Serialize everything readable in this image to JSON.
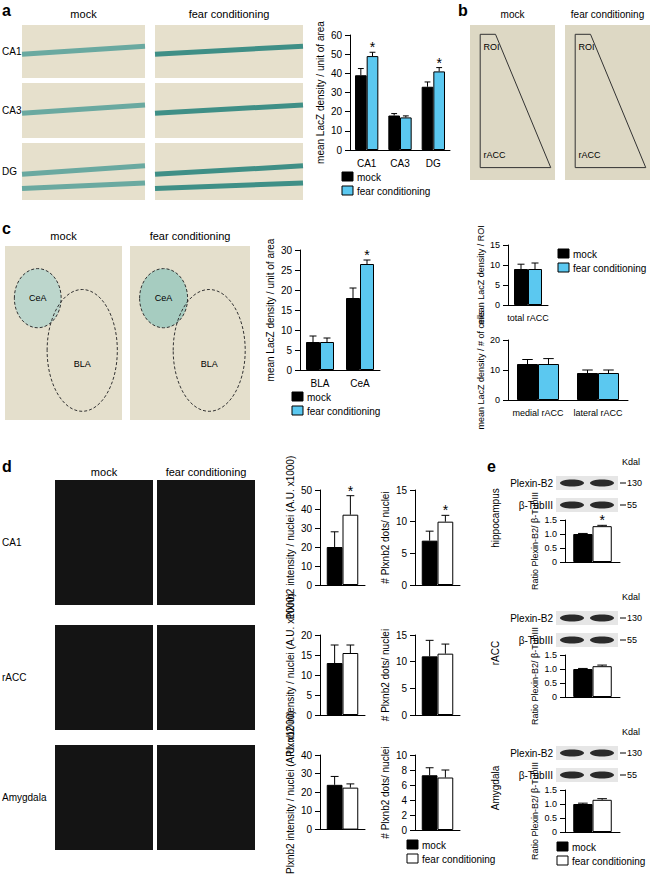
{
  "chart_data": [
    {
      "type": "bar",
      "ylabel": "mean LacZ density / unit of area",
      "categories": [
        "CA1",
        "CA3",
        "DG"
      ],
      "ylim": [
        0,
        60
      ],
      "yticks": [
        0,
        10,
        20,
        30,
        40,
        50,
        60
      ],
      "legend": "bottom",
      "series": [
        {
          "name": "mock",
          "color": "#000000",
          "values": [
            39,
            18,
            33
          ],
          "errors": [
            3.5,
            1,
            2.5
          ]
        },
        {
          "name": "fear conditioning",
          "color": "#5bc8f0",
          "values": [
            49,
            17,
            41
          ],
          "errors": [
            2,
            0.8,
            2
          ],
          "significance": [
            "*",
            null,
            "*"
          ]
        }
      ]
    },
    {
      "type": "bar",
      "ylabel": "mean LacZ density / ROI",
      "categories": [
        "total rACC"
      ],
      "ylim": [
        0,
        15
      ],
      "yticks": [
        0,
        5,
        10,
        15
      ],
      "legend": "right",
      "series": [
        {
          "name": "mock",
          "color": "#000000",
          "values": [
            9
          ],
          "errors": [
            1.2
          ]
        },
        {
          "name": "fear conditioning",
          "color": "#5bc8f0",
          "values": [
            9
          ],
          "errors": [
            1.5
          ]
        }
      ]
    },
    {
      "type": "bar",
      "ylabel": "mean LacZ density / # of cells",
      "categories": [
        "medial rACC",
        "lateral rACC"
      ],
      "ylim": [
        0,
        20
      ],
      "yticks": [
        0,
        10,
        20
      ],
      "series": [
        {
          "name": "mock",
          "color": "#000000",
          "values": [
            12,
            9
          ],
          "errors": [
            1.5,
            1
          ]
        },
        {
          "name": "fear conditioning",
          "color": "#5bc8f0",
          "values": [
            12,
            9
          ],
          "errors": [
            1.8,
            1
          ]
        }
      ]
    },
    {
      "type": "bar",
      "ylabel": "mean LacZ density / unit of area",
      "categories": [
        "BLA",
        "CeA"
      ],
      "ylim": [
        0,
        30
      ],
      "yticks": [
        0,
        5,
        10,
        15,
        20,
        25,
        30
      ],
      "legend": "bottom",
      "series": [
        {
          "name": "mock",
          "color": "#000000",
          "values": [
            7,
            18
          ],
          "errors": [
            1.5,
            2.5
          ]
        },
        {
          "name": "fear conditioning",
          "color": "#5bc8f0",
          "values": [
            7,
            26.5
          ],
          "errors": [
            1,
            1
          ],
          "significance": [
            null,
            "*"
          ]
        }
      ]
    },
    {
      "type": "bar",
      "ylabel": "Plxnb2 intensity / nuclei (A.U. x1000)",
      "categories": [
        null
      ],
      "ylim": [
        0,
        50
      ],
      "yticks": [
        0,
        10,
        20,
        30,
        40,
        50
      ],
      "series": [
        {
          "name": "mock",
          "color": "#000000",
          "values": [
            20
          ],
          "errors": [
            8
          ]
        },
        {
          "name": "fear conditioning",
          "color": "#ffffff",
          "values": [
            37
          ],
          "errors": [
            10
          ],
          "significance": [
            "*"
          ]
        }
      ]
    },
    {
      "type": "bar",
      "ylabel": "# Plxnb2 dots/ nuclei",
      "categories": [
        null
      ],
      "ylim": [
        0,
        15
      ],
      "yticks": [
        0,
        5,
        10,
        15
      ],
      "series": [
        {
          "name": "mock",
          "color": "#000000",
          "values": [
            7
          ],
          "errors": [
            1.5
          ]
        },
        {
          "name": "fear conditioning",
          "color": "#ffffff",
          "values": [
            10
          ],
          "errors": [
            1
          ],
          "significance": [
            "*"
          ]
        }
      ]
    },
    {
      "type": "bar",
      "ylabel": "Plxnb2 intensity / nuclei (A.U. x1000)",
      "categories": [
        null
      ],
      "ylim": [
        0,
        20
      ],
      "yticks": [
        0,
        5,
        10,
        15,
        20
      ],
      "series": [
        {
          "name": "mock",
          "color": "#000000",
          "values": [
            13
          ],
          "errors": [
            4.5
          ]
        },
        {
          "name": "fear conditioning",
          "color": "#ffffff",
          "values": [
            15.5
          ],
          "errors": [
            2
          ]
        }
      ]
    },
    {
      "type": "bar",
      "ylabel": "# Plxnb2 dots/ nuclei",
      "categories": [
        null
      ],
      "ylim": [
        0,
        15
      ],
      "yticks": [
        0,
        5,
        10,
        15
      ],
      "series": [
        {
          "name": "mock",
          "color": "#000000",
          "values": [
            11
          ],
          "errors": [
            3
          ]
        },
        {
          "name": "fear conditioning",
          "color": "#ffffff",
          "values": [
            11.5
          ],
          "errors": [
            1.8
          ]
        }
      ]
    },
    {
      "type": "bar",
      "ylabel": "Plxnb2 intensity / nuclei (A.U. x1000)",
      "categories": [
        null
      ],
      "ylim": [
        0,
        40
      ],
      "yticks": [
        0,
        10,
        20,
        30,
        40
      ],
      "series": [
        {
          "name": "mock",
          "color": "#000000",
          "values": [
            24
          ],
          "errors": [
            4.5
          ]
        },
        {
          "name": "fear conditioning",
          "color": "#ffffff",
          "values": [
            22.5
          ],
          "errors": [
            2
          ]
        }
      ]
    },
    {
      "type": "bar",
      "ylabel": "# Plxnb2 dots/ nuclei",
      "categories": [
        null
      ],
      "ylim": [
        0,
        10
      ],
      "yticks": [
        0,
        2,
        4,
        6,
        8,
        10
      ],
      "legend": "bottom",
      "series": [
        {
          "name": "mock",
          "color": "#000000",
          "values": [
            7.3
          ],
          "errors": [
            1
          ]
        },
        {
          "name": "fear conditioning",
          "color": "#ffffff",
          "values": [
            7
          ],
          "errors": [
            1
          ]
        }
      ]
    },
    {
      "type": "bar",
      "ylabel": "Ratio Plexin-B2/ β-TubIII",
      "categories": [
        null
      ],
      "ylim": [
        0,
        1.5
      ],
      "yticks": [
        0,
        0.5,
        {
          "value": 1,
          "label": "1.0"
        },
        1.5
      ],
      "series": [
        {
          "name": "mock",
          "color": "#000000",
          "values": [
            1.0
          ],
          "errors": [
            0.02
          ]
        },
        {
          "name": "fear conditioning",
          "color": "#ffffff",
          "values": [
            1.28
          ],
          "errors": [
            0.03
          ],
          "significance": [
            "*"
          ]
        }
      ]
    },
    {
      "type": "bar",
      "ylabel": "Ratio Plexin-B2/ β-TubIII",
      "categories": [
        null
      ],
      "ylim": [
        0,
        1.5
      ],
      "yticks": [
        0,
        0.5,
        {
          "value": 1,
          "label": "1.0"
        },
        1.5
      ],
      "series": [
        {
          "name": "mock",
          "color": "#000000",
          "values": [
            1.0
          ],
          "errors": [
            0.02
          ]
        },
        {
          "name": "fear conditioning",
          "color": "#ffffff",
          "values": [
            1.1
          ],
          "errors": [
            0.04
          ]
        }
      ]
    },
    {
      "type": "bar",
      "ylabel": "Ratio Plexin-B2/ β-TubIII",
      "categories": [
        null
      ],
      "ylim": [
        0,
        1.5
      ],
      "yticks": [
        0,
        0.5,
        {
          "value": 1,
          "label": "1.0"
        },
        1.5
      ],
      "legend": "bottom",
      "series": [
        {
          "name": "mock",
          "color": "#000000",
          "values": [
            1.0
          ],
          "errors": [
            0.03
          ]
        },
        {
          "name": "fear conditioning",
          "color": "#ffffff",
          "values": [
            1.15
          ],
          "errors": [
            0.04
          ]
        }
      ]
    }
  ],
  "panels": {
    "a": {
      "letter": "a",
      "columns": [
        "mock",
        "fear conditioning"
      ],
      "rows": [
        "CA1",
        "CA3",
        "DG"
      ]
    },
    "b": {
      "letter": "b",
      "columns": [
        "mock",
        "fear conditioning"
      ],
      "labels": [
        "ROI",
        "rACC"
      ]
    },
    "c": {
      "letter": "c",
      "columns": [
        "mock",
        "fear conditioning"
      ],
      "labels": [
        "CeA",
        "BLA"
      ]
    },
    "d": {
      "letter": "d",
      "columns": [
        "mock",
        "fear conditioning"
      ],
      "rows": [
        "CA1",
        "rACC",
        "Amygdala"
      ]
    },
    "e": {
      "letter": "e",
      "unit": "Kdal",
      "blots": [
        {
          "region": "hippocampus",
          "bands": [
            "Plexin-B2",
            "β-TubIII"
          ],
          "markers": [
            130,
            55
          ]
        },
        {
          "region": "rACC",
          "bands": [
            "Plexin-B2",
            "β-TubIII"
          ],
          "markers": [
            130,
            55
          ]
        },
        {
          "region": "Amygdala",
          "bands": [
            "Plexin-B2",
            "β-TubIII"
          ],
          "markers": [
            130,
            55
          ]
        }
      ]
    }
  }
}
